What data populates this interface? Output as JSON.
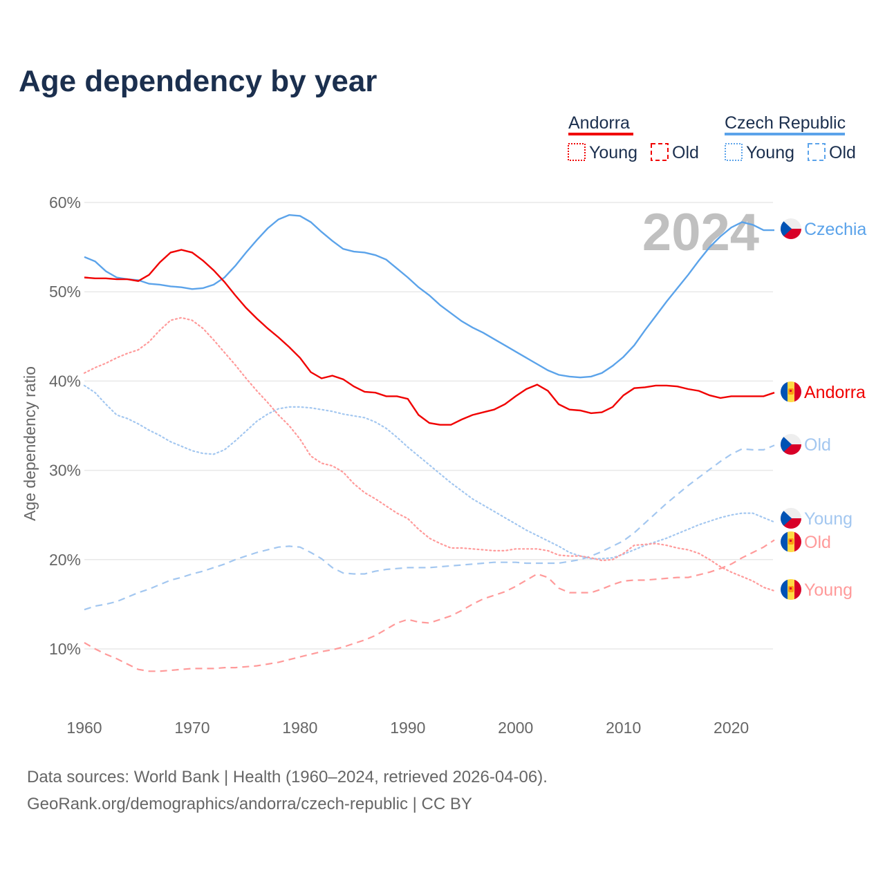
{
  "chart_data": {
    "type": "line",
    "title": "Age dependency by year",
    "ylabel": "Age dependency ratio",
    "xlabel": "",
    "year_label": "2024",
    "x": {
      "start": 1960,
      "end": 2024
    },
    "xlim": [
      1960,
      2024
    ],
    "ylim": [
      10,
      60
    ],
    "grid": true,
    "x_ticks": [
      "1960",
      "1970",
      "1980",
      "1990",
      "2000",
      "2010",
      "2020"
    ],
    "y_ticks": [
      "10%",
      "20%",
      "30%",
      "40%",
      "50%",
      "60%"
    ],
    "legend": {
      "placement": "top-right",
      "groups": [
        {
          "name": "Andorra",
          "color": "#f00000",
          "items": [
            "Young",
            "Old"
          ]
        },
        {
          "name": "Czech Republic",
          "color": "#5ba3ea",
          "items": [
            "Young",
            "Old"
          ]
        }
      ]
    },
    "series": [
      {
        "name": "Czechia",
        "country": "cz",
        "kind": "total",
        "label": "Czechia",
        "color": "#5ba3ea",
        "values": [
          53.9,
          53.4,
          52.3,
          51.6,
          51.4,
          51.3,
          50.9,
          50.8,
          50.6,
          50.5,
          50.3,
          50.4,
          50.8,
          51.6,
          52.9,
          54.4,
          55.8,
          57.1,
          58.1,
          58.6,
          58.5,
          57.8,
          56.7,
          55.7,
          54.8,
          54.5,
          54.4,
          54.1,
          53.6,
          52.6,
          51.6,
          50.5,
          49.6,
          48.5,
          47.6,
          46.7,
          46.0,
          45.4,
          44.7,
          44.0,
          43.3,
          42.6,
          41.9,
          41.2,
          40.7,
          40.5,
          40.4,
          40.5,
          40.9,
          41.7,
          42.7,
          44.0,
          45.7,
          47.3,
          48.9,
          50.4,
          51.9,
          53.5,
          55.0,
          56.2,
          57.2,
          57.8,
          57.5,
          56.9,
          56.9
        ]
      },
      {
        "name": "Andorra",
        "country": "ad",
        "kind": "total",
        "label": "Andorra",
        "color": "#f00000",
        "values": [
          51.6,
          51.5,
          51.5,
          51.4,
          51.4,
          51.2,
          51.9,
          53.3,
          54.4,
          54.7,
          54.4,
          53.5,
          52.4,
          51.1,
          49.6,
          48.2,
          47.0,
          45.9,
          44.9,
          43.8,
          42.6,
          41.0,
          40.3,
          40.6,
          40.2,
          39.4,
          38.8,
          38.7,
          38.3,
          38.3,
          38.0,
          36.2,
          35.3,
          35.1,
          35.1,
          35.7,
          36.2,
          36.5,
          36.8,
          37.4,
          38.3,
          39.1,
          39.6,
          38.9,
          37.4,
          36.8,
          36.7,
          36.4,
          36.5,
          37.1,
          38.4,
          39.2,
          39.3,
          39.5,
          39.5,
          39.4,
          39.1,
          38.9,
          38.4,
          38.1,
          38.3,
          38.3,
          38.3,
          38.3,
          38.7
        ]
      },
      {
        "name": "Czech Republic Old",
        "country": "cz",
        "kind": "old",
        "label": "Old",
        "color": "#a3c7f0",
        "values": [
          14.4,
          14.8,
          15.0,
          15.3,
          15.8,
          16.3,
          16.7,
          17.2,
          17.7,
          18.0,
          18.4,
          18.7,
          19.1,
          19.5,
          20.0,
          20.4,
          20.8,
          21.1,
          21.4,
          21.5,
          21.4,
          20.8,
          20.1,
          19.1,
          18.5,
          18.4,
          18.4,
          18.7,
          18.9,
          19.0,
          19.1,
          19.1,
          19.1,
          19.2,
          19.3,
          19.4,
          19.5,
          19.6,
          19.7,
          19.7,
          19.7,
          19.6,
          19.6,
          19.6,
          19.6,
          19.8,
          20.0,
          20.4,
          20.9,
          21.5,
          22.1,
          23.0,
          24.1,
          25.2,
          26.3,
          27.3,
          28.3,
          29.2,
          30.1,
          31.0,
          31.8,
          32.4,
          32.3,
          32.3,
          32.8
        ]
      },
      {
        "name": "Czech Republic Young",
        "country": "cz",
        "kind": "young",
        "label": "Young",
        "color": "#a3c7f0",
        "values": [
          39.5,
          38.7,
          37.4,
          36.2,
          35.8,
          35.2,
          34.5,
          33.9,
          33.2,
          32.7,
          32.2,
          31.9,
          31.8,
          32.3,
          33.3,
          34.4,
          35.5,
          36.3,
          36.9,
          37.1,
          37.1,
          37.0,
          36.8,
          36.6,
          36.3,
          36.1,
          35.9,
          35.4,
          34.7,
          33.7,
          32.6,
          31.6,
          30.6,
          29.6,
          28.6,
          27.7,
          26.8,
          26.1,
          25.4,
          24.7,
          24.0,
          23.3,
          22.7,
          22.1,
          21.5,
          20.8,
          20.4,
          20.1,
          20.1,
          20.2,
          20.6,
          21.1,
          21.6,
          22.0,
          22.4,
          22.9,
          23.4,
          23.9,
          24.3,
          24.7,
          25.0,
          25.2,
          25.2,
          24.7,
          24.2
        ]
      },
      {
        "name": "Andorra Old",
        "country": "ad",
        "kind": "old",
        "label": "Old",
        "color": "#ff9a9a",
        "values": [
          10.7,
          10.0,
          9.4,
          8.9,
          8.3,
          7.7,
          7.5,
          7.5,
          7.6,
          7.7,
          7.8,
          7.8,
          7.8,
          7.9,
          7.9,
          8.0,
          8.1,
          8.3,
          8.5,
          8.8,
          9.1,
          9.4,
          9.7,
          9.9,
          10.2,
          10.6,
          11.0,
          11.5,
          12.2,
          12.9,
          13.3,
          13.0,
          12.9,
          13.3,
          13.7,
          14.3,
          15.0,
          15.6,
          16.0,
          16.4,
          17.0,
          17.7,
          18.4,
          18.0,
          16.8,
          16.3,
          16.3,
          16.3,
          16.7,
          17.2,
          17.6,
          17.7,
          17.7,
          17.8,
          17.9,
          18.0,
          18.0,
          18.3,
          18.6,
          19.0,
          19.5,
          20.2,
          20.8,
          21.4,
          22.2
        ]
      },
      {
        "name": "Andorra Young",
        "country": "ad",
        "kind": "young",
        "label": "Young",
        "color": "#ff9a9a",
        "values": [
          40.9,
          41.5,
          42.0,
          42.6,
          43.1,
          43.5,
          44.4,
          45.7,
          46.8,
          47.1,
          46.8,
          45.9,
          44.6,
          43.2,
          41.8,
          40.3,
          38.9,
          37.6,
          36.2,
          35.0,
          33.5,
          31.6,
          30.8,
          30.5,
          29.8,
          28.5,
          27.5,
          26.8,
          26.0,
          25.2,
          24.6,
          23.4,
          22.4,
          21.8,
          21.3,
          21.3,
          21.2,
          21.1,
          21.0,
          21.0,
          21.2,
          21.2,
          21.2,
          21.0,
          20.5,
          20.4,
          20.4,
          20.2,
          19.9,
          20.0,
          20.7,
          21.6,
          21.7,
          21.8,
          21.6,
          21.3,
          21.1,
          20.7,
          20.0,
          19.2,
          18.6,
          18.1,
          17.6,
          16.9,
          16.5
        ]
      }
    ],
    "footer": {
      "source": "Data sources: World Bank | Health (1960–2024, retrieved 2026-04-06).",
      "url": "GeoRank.org/demographics/andorra/czech-republic | CC BY"
    },
    "colors": {
      "title": "#1b2f4e",
      "axis_text": "#666666",
      "grid": "#e8e8e8",
      "year": "#c0c0c0"
    }
  }
}
